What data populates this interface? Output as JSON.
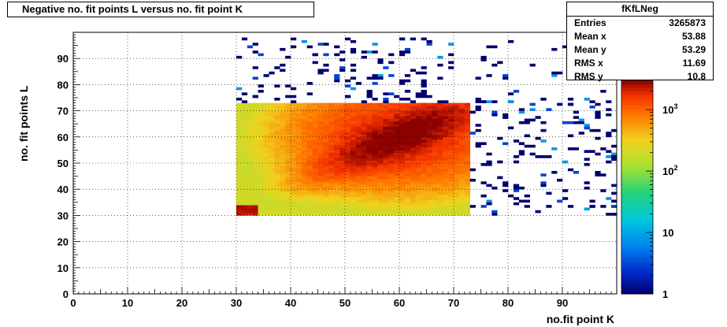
{
  "chart_data": {
    "type": "heatmap",
    "title": "Negative no. fit points L versus no. fit point K",
    "xlabel": "no.fit point K",
    "ylabel": "no. fit points  L",
    "xlim": [
      0,
      100
    ],
    "ylim": [
      0,
      100
    ],
    "x_ticks": [
      0,
      10,
      20,
      30,
      40,
      50,
      60,
      70,
      80,
      90
    ],
    "y_ticks": [
      0,
      10,
      20,
      30,
      40,
      50,
      60,
      70,
      80,
      90
    ],
    "grid": true,
    "log_z": true,
    "zlim": [
      1,
      3000
    ],
    "z_ticks": [
      {
        "value": 1,
        "label": "1"
      },
      {
        "value": 10,
        "label": "10"
      },
      {
        "value": 100,
        "label": "10^2"
      },
      {
        "value": 1000,
        "label": "10^3"
      }
    ],
    "dense_region": {
      "x": [
        30,
        73
      ],
      "y": [
        30,
        73
      ],
      "peak": [
        60,
        60
      ],
      "level_min": 200,
      "level_max": 3000
    },
    "stats": {
      "name": "fKfLNeg",
      "entries": "3265873",
      "mean_x": "53.88",
      "mean_y": "53.29",
      "rms_x": "11.69",
      "rms_y": "10.8"
    },
    "stats_labels": {
      "entries": "Entries",
      "mean_x": "Mean x",
      "mean_y": "Mean y",
      "rms_x": "RMS x",
      "rms_y": "RMS y"
    }
  }
}
